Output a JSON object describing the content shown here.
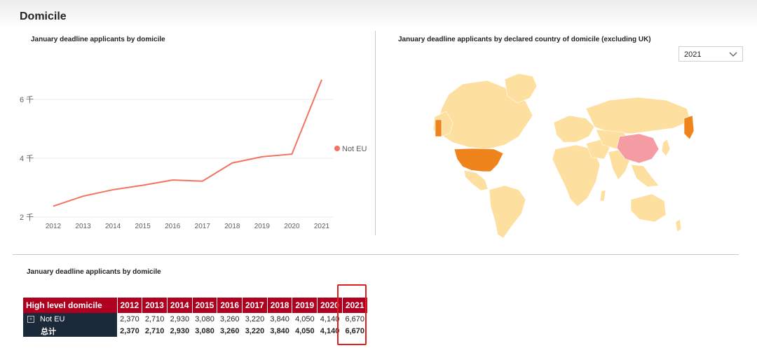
{
  "page": {
    "title": "Domicile"
  },
  "line_chart": {
    "title": "January deadline applicants  by domicile",
    "yticks": [
      "2 千",
      "4 千",
      "6 千"
    ],
    "legend_label": "Not EU",
    "color": "#f27360"
  },
  "map": {
    "title": "January deadline applicants  by declared country of domicile (excluding UK)",
    "slicer_value": "2021"
  },
  "table": {
    "title": "January deadline applicants  by domicile",
    "header": "High level domicile",
    "years": [
      "2012",
      "2013",
      "2014",
      "2015",
      "2016",
      "2017",
      "2018",
      "2019",
      "2020",
      "2021"
    ],
    "rows": [
      {
        "label": "Not EU",
        "values": [
          "2,370",
          "2,710",
          "2,930",
          "3,080",
          "3,260",
          "3,220",
          "3,840",
          "4,050",
          "4,140",
          "6,670"
        ]
      },
      {
        "label": "总计",
        "values": [
          "2,370",
          "2,710",
          "2,930",
          "3,080",
          "3,260",
          "3,220",
          "3,840",
          "4,050",
          "4,140",
          "6,670"
        ]
      }
    ]
  },
  "chart_data": {
    "type": "line",
    "x": [
      "2012",
      "2013",
      "2014",
      "2015",
      "2016",
      "2017",
      "2018",
      "2019",
      "2020",
      "2021"
    ],
    "series": [
      {
        "name": "Not EU",
        "values": [
          2370,
          2710,
          2930,
          3080,
          3260,
          3220,
          3840,
          4050,
          4140,
          6670
        ]
      }
    ],
    "yticks": [
      2000,
      4000,
      6000
    ],
    "ylim": [
      2000,
      7000
    ],
    "grid": true,
    "legend": "right"
  }
}
